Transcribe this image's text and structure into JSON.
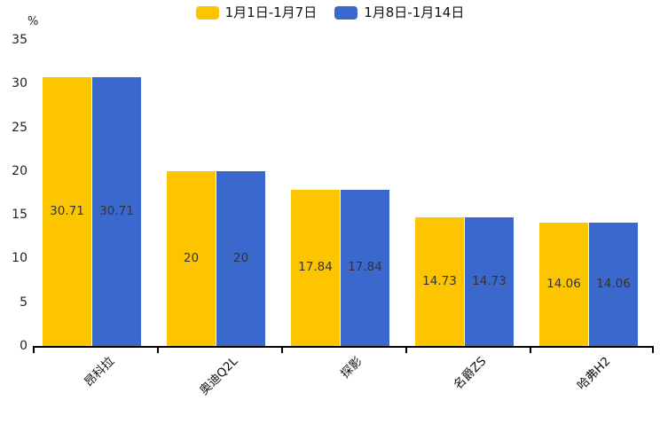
{
  "chart_data": {
    "type": "bar",
    "title": "",
    "ylabel": "%",
    "xlabel": "",
    "categories": [
      "昂科拉",
      "奥迪Q2L",
      "探影",
      "名爵ZS",
      "哈弗H2"
    ],
    "series": [
      {
        "name": "1月1日-1月7日",
        "color": "#FDC500",
        "values": [
          30.71,
          20,
          17.84,
          14.73,
          14.06
        ]
      },
      {
        "name": "1月8日-1月14日",
        "color": "#3A68CD",
        "values": [
          30.71,
          20,
          17.84,
          14.73,
          14.06
        ]
      }
    ],
    "value_labels": [
      [
        "30.71",
        "20",
        "17.84",
        "14.73",
        "14.06"
      ],
      [
        "30.71",
        "20",
        "17.84",
        "14.73",
        "14.06"
      ]
    ],
    "ylim": [
      0,
      35
    ],
    "yticks": [
      0,
      5,
      10,
      15,
      20,
      25,
      30,
      35
    ],
    "grid": false,
    "legend_position": "top-center",
    "value_label_position": "inside-center",
    "category_label_rotation_deg": 45,
    "axis_color": "#000000",
    "text_color": "#1f1f1f",
    "value_label_color": "#333333",
    "background_color": "#ffffff"
  }
}
